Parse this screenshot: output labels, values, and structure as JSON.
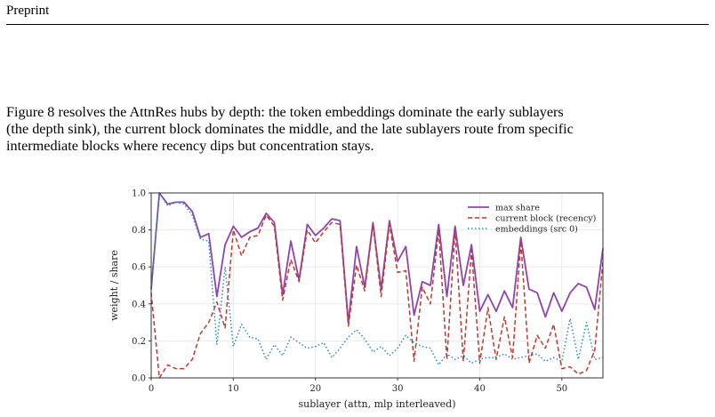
{
  "page": {
    "header": "Preprint",
    "paragraph_lines": [
      "Figure 8 resolves the AttnRes hubs by depth: the token embeddings dominate the early sublayers",
      "(the depth sink), the current block dominates the middle, and the late sublayers route from specific",
      "intermediate blocks where recency dips but concentration stays."
    ]
  },
  "chart_data": {
    "type": "line",
    "xlabel": "sublayer (attn, mlp interleaved)",
    "ylabel": "weight / share",
    "xlim": [
      0,
      55
    ],
    "ylim": [
      0,
      1.0
    ],
    "xticks": [
      0,
      10,
      20,
      30,
      40,
      50
    ],
    "yticks": [
      0.0,
      0.2,
      0.4,
      0.6,
      0.8,
      1.0
    ],
    "xtick_labels": [
      "0",
      "10",
      "20",
      "30",
      "40",
      "50"
    ],
    "ytick_labels": [
      "0.0",
      "0.2",
      "0.4",
      "0.6",
      "0.8",
      "1.0"
    ],
    "grid": true,
    "legend_position": "top-right",
    "series": [
      {
        "name": "max share",
        "color": "#8e44ad",
        "style": "solid",
        "values": [
          0.48,
          1.0,
          0.94,
          0.95,
          0.95,
          0.9,
          0.76,
          0.78,
          0.44,
          0.72,
          0.82,
          0.76,
          0.79,
          0.81,
          0.89,
          0.84,
          0.45,
          0.74,
          0.53,
          0.83,
          0.77,
          0.81,
          0.86,
          0.85,
          0.3,
          0.71,
          0.49,
          0.84,
          0.48,
          0.85,
          0.63,
          0.71,
          0.34,
          0.52,
          0.5,
          0.83,
          0.44,
          0.82,
          0.5,
          0.72,
          0.36,
          0.45,
          0.36,
          0.47,
          0.38,
          0.76,
          0.48,
          0.46,
          0.33,
          0.46,
          0.36,
          0.46,
          0.51,
          0.49,
          0.37,
          0.7
        ]
      },
      {
        "name": "current block (recency)",
        "color": "#c0392b",
        "style": "dashed",
        "values": [
          0.46,
          0.0,
          0.07,
          0.05,
          0.05,
          0.1,
          0.24,
          0.3,
          0.41,
          0.27,
          0.8,
          0.66,
          0.76,
          0.77,
          0.88,
          0.82,
          0.42,
          0.64,
          0.52,
          0.8,
          0.73,
          0.79,
          0.84,
          0.83,
          0.28,
          0.61,
          0.47,
          0.83,
          0.44,
          0.83,
          0.57,
          0.58,
          0.09,
          0.49,
          0.4,
          0.8,
          0.1,
          0.8,
          0.09,
          0.69,
          0.08,
          0.38,
          0.1,
          0.33,
          0.11,
          0.74,
          0.08,
          0.23,
          0.16,
          0.29,
          0.05,
          0.06,
          0.02,
          0.04,
          0.15,
          0.63
        ]
      },
      {
        "name": "embeddings (src 0)",
        "color": "#2e86c1",
        "style": "dotted",
        "values": [
          0.48,
          1.0,
          0.93,
          0.95,
          0.94,
          0.88,
          0.75,
          0.74,
          0.18,
          0.6,
          0.17,
          0.29,
          0.22,
          0.21,
          0.1,
          0.18,
          0.12,
          0.22,
          0.19,
          0.16,
          0.17,
          0.19,
          0.11,
          0.16,
          0.22,
          0.26,
          0.21,
          0.14,
          0.17,
          0.12,
          0.16,
          0.23,
          0.19,
          0.17,
          0.16,
          0.07,
          0.13,
          0.1,
          0.12,
          0.08,
          0.1,
          0.11,
          0.11,
          0.13,
          0.1,
          0.11,
          0.12,
          0.13,
          0.09,
          0.11,
          0.09,
          0.32,
          0.1,
          0.3,
          0.1,
          0.11
        ]
      }
    ]
  }
}
